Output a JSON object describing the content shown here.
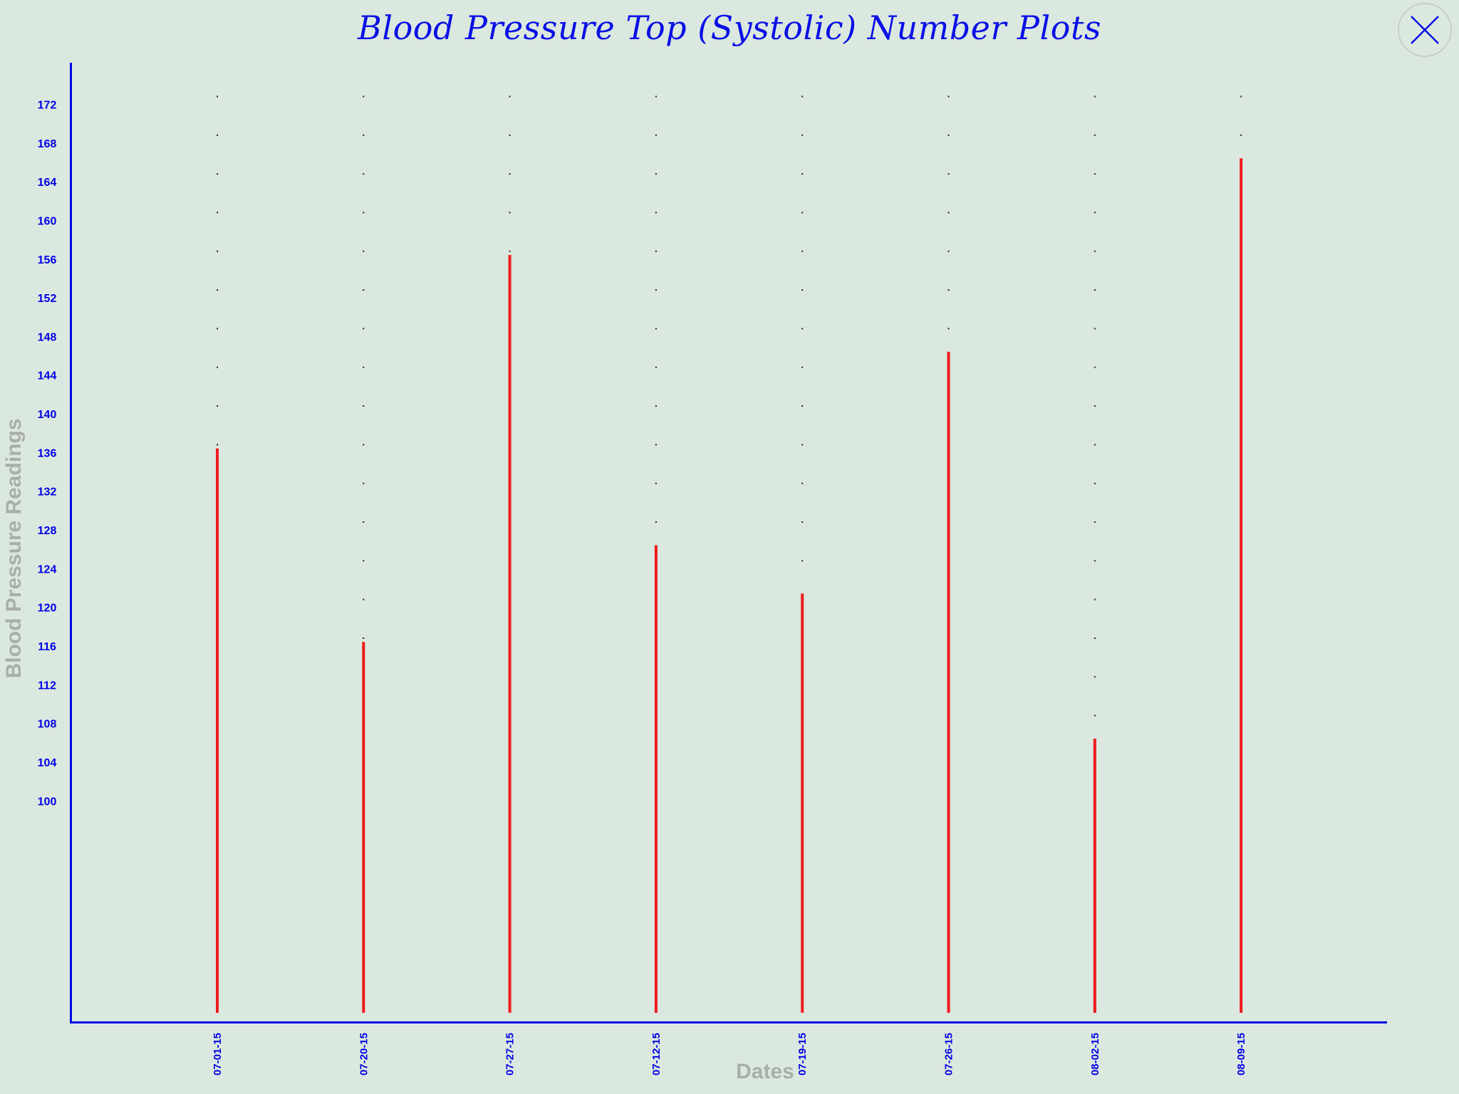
{
  "window": {
    "close_icon": "close-x-icon"
  },
  "chart_data": {
    "type": "bar",
    "title": "Blood Pressure Top (Systolic) Number Plots",
    "xlabel": "Dates",
    "ylabel": "Blood Pressure Readings",
    "categories": [
      "07-01-15",
      "07-20-15",
      "07-27-15",
      "07-12-15",
      "07-19-15",
      "07-26-15",
      "08-02-15",
      "08-09-15"
    ],
    "values": [
      139,
      119,
      159,
      129,
      124,
      149,
      109,
      169
    ],
    "yticks": [
      100,
      104,
      108,
      112,
      116,
      120,
      124,
      128,
      132,
      136,
      140,
      144,
      148,
      152,
      156,
      160,
      164,
      168,
      172
    ],
    "ylim": [
      96,
      174
    ],
    "grid": "dotted",
    "legend": "none",
    "colors": {
      "bars": "#ee1c1c",
      "axes": "#0000e6",
      "ticks": "#0000e6",
      "title": "#0a10e6",
      "axis_titles": "#a9aea9",
      "grid_dots": "#222222",
      "background": "#dbe8df"
    }
  }
}
